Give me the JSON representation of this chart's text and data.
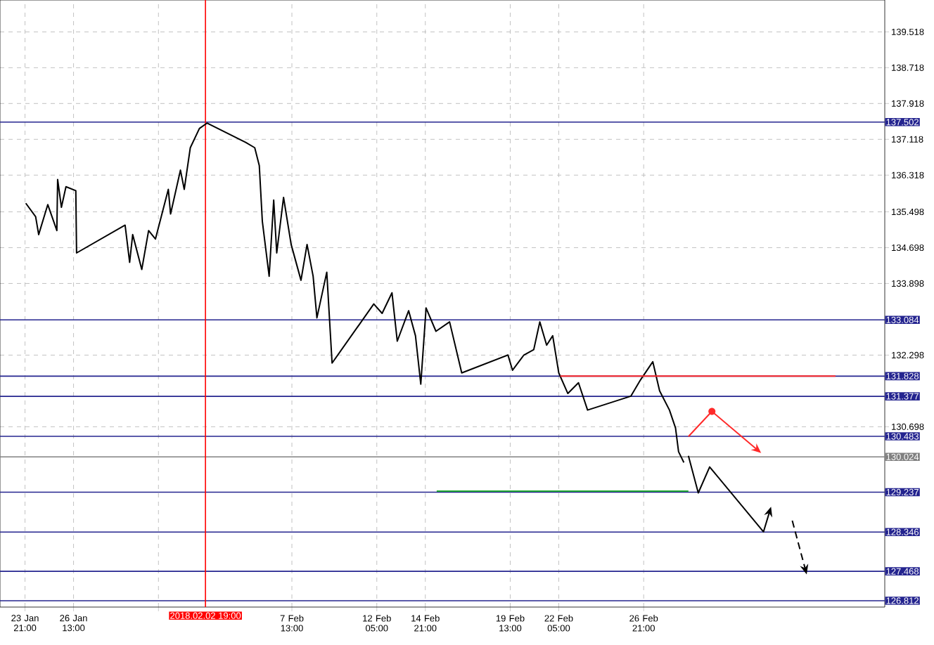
{
  "chart_data": {
    "type": "line",
    "xlim": [
      "2018-01-22T12:00",
      "2018-03-12T03:00"
    ],
    "ylim": [
      126.67,
      140.23
    ],
    "xticks": [
      {
        "value": "2018-01-23T21:00",
        "label": "23 Jan 21:00"
      },
      {
        "value": "2018-01-26T13:00",
        "label": "26 Jan 13:00"
      },
      {
        "value": "2018-01-31T05:00",
        "label": null
      },
      {
        "value": "2018-02-07T13:00",
        "label": "7 Feb 13:00"
      },
      {
        "value": "2018-02-12T05:00",
        "label": "12 Feb 05:00"
      },
      {
        "value": "2018-02-14T21:00",
        "label": "14 Feb 21:00"
      },
      {
        "value": "2018-02-19T13:00",
        "label": "19 Feb 13:00"
      },
      {
        "value": "2018-02-22T05:00",
        "label": "22 Feb 05:00"
      },
      {
        "value": "2018-02-26T21:00",
        "label": "26 Feb 21:00"
      }
    ],
    "yticks": [
      139.518,
      138.718,
      137.918,
      137.118,
      136.318,
      135.498,
      134.698,
      133.898,
      132.298,
      130.698
    ],
    "grid": true,
    "series": [
      {
        "color": "#000000",
        "x": [
          "2018-01-23T22:00",
          "2018-01-24T11:00",
          "2018-01-24T15:00",
          "2018-01-25T03:00",
          "2018-01-25T15:00",
          "2018-01-25T16:00",
          "2018-01-25T21:00",
          "2018-01-26T03:00",
          "2018-01-26T16:00",
          "2018-01-26T17:00",
          "2018-01-29T09:00",
          "2018-01-29T15:00",
          "2018-01-29T19:00",
          "2018-01-30T07:00",
          "2018-01-30T16:00",
          "2018-01-31T01:00",
          "2018-01-31T18:00",
          "2018-01-31T21:00",
          "2018-02-01T10:00",
          "2018-02-01T15:00",
          "2018-02-01T23:00",
          "2018-02-02T11:00",
          "2018-02-02T21:00",
          "2018-02-05T00:00",
          "2018-02-05T12:00",
          "2018-02-05T18:00",
          "2018-02-05T22:00",
          "2018-02-06T07:00",
          "2018-02-06T13:00",
          "2018-02-06T17:00",
          "2018-02-07T02:00",
          "2018-02-07T12:00",
          "2018-02-08T01:00",
          "2018-02-08T09:00",
          "2018-02-08T17:00",
          "2018-02-08T22:00",
          "2018-02-09T11:00",
          "2018-02-09T18:00",
          "2018-02-12T01:00",
          "2018-02-12T12:00",
          "2018-02-13T01:00",
          "2018-02-13T08:00",
          "2018-02-13T23:00",
          "2018-02-14T08:00",
          "2018-02-14T15:00",
          "2018-02-14T22:00",
          "2018-02-15T11:00",
          "2018-02-16T05:00",
          "2018-02-16T21:00",
          "2018-02-19T10:00",
          "2018-02-19T16:00",
          "2018-02-20T07:00",
          "2018-02-20T20:00",
          "2018-02-21T04:00",
          "2018-02-21T13:00",
          "2018-02-21T21:00",
          "2018-02-22T05:00",
          "2018-02-22T17:00",
          "2018-02-23T07:00",
          "2018-02-23T19:00",
          "2018-02-26T04:00",
          "2018-02-26T17:00",
          "2018-02-27T09:00",
          "2018-02-27T18:00",
          "2018-02-28T07:00",
          "2018-02-28T15:00",
          "2018-02-28T19:00",
          "2018-03-01T02:00"
        ],
        "values": [
          135.69,
          135.39,
          134.99,
          135.66,
          135.08,
          136.22,
          135.6,
          136.06,
          135.97,
          134.58,
          135.2,
          134.37,
          134.99,
          134.21,
          135.08,
          134.89,
          136.0,
          135.45,
          136.43,
          136.0,
          136.93,
          137.36,
          137.48,
          137.05,
          136.93,
          136.53,
          135.29,
          134.06,
          135.76,
          134.58,
          135.82,
          134.77,
          133.97,
          134.77,
          134.06,
          133.13,
          134.15,
          132.12,
          133.44,
          133.23,
          133.69,
          132.61,
          133.29,
          132.73,
          131.65,
          133.35,
          132.83,
          133.04,
          131.9,
          132.3,
          131.96,
          132.3,
          132.42,
          133.04,
          132.52,
          132.73,
          131.9,
          131.44,
          131.68,
          131.07,
          131.38,
          131.75,
          132.15,
          131.5,
          131.07,
          130.67,
          130.14,
          129.9
        ]
      },
      {
        "color": "#ff2a2a",
        "x": [
          "2018-02-22T07:00",
          "2018-03-09T10:00"
        ],
        "values": [
          131.83,
          131.83
        ]
      },
      {
        "color": "#22aa33",
        "x": [
          "2018-02-15T12:00",
          "2018-03-01T08:00"
        ],
        "values": [
          129.26,
          129.26
        ]
      }
    ],
    "ref_lines": [
      {
        "axis": "y",
        "value": 137.502,
        "label": "137.502",
        "color": "#24248f"
      },
      {
        "axis": "y",
        "value": 133.084,
        "label": "133.084",
        "color": "#24248f"
      },
      {
        "axis": "y",
        "value": 131.828,
        "label": "131.828",
        "color": "#24248f"
      },
      {
        "axis": "y",
        "value": 131.377,
        "label": "131.377",
        "color": "#24248f"
      },
      {
        "axis": "y",
        "value": 130.483,
        "label": "130.483",
        "color": "#24248f"
      },
      {
        "axis": "y",
        "value": 130.024,
        "label": "130.024",
        "color": "#808080"
      },
      {
        "axis": "y",
        "value": 129.237,
        "label": "129.237",
        "color": "#24248f"
      },
      {
        "axis": "y",
        "value": 128.346,
        "label": "128.346",
        "color": "#24248f"
      },
      {
        "axis": "y",
        "value": 127.468,
        "label": "127.468",
        "color": "#24248f"
      },
      {
        "axis": "y",
        "value": 126.812,
        "label": "126.812",
        "color": "#24248f"
      },
      {
        "axis": "x",
        "value": "2018-02-02T19:00",
        "label": "2018.02.02 19:00",
        "color": "#ff0000"
      }
    ]
  }
}
